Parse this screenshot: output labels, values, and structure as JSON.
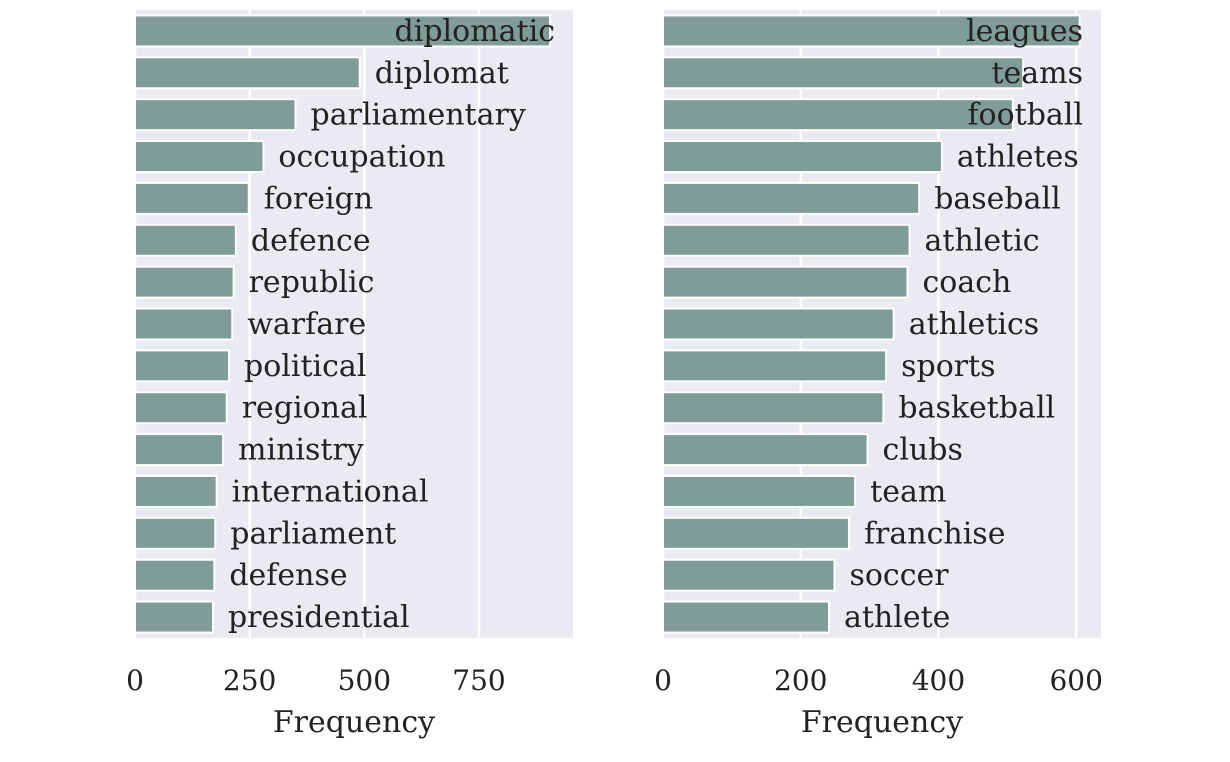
{
  "chart_data": [
    {
      "type": "bar",
      "orientation": "horizontal",
      "categories": [
        "diplomatic",
        "diplomat",
        "parliamentary",
        "occupation",
        "foreign",
        "defence",
        "republic",
        "warfare",
        "political",
        "regional",
        "ministry",
        "international",
        "parliament",
        "defense",
        "presidential"
      ],
      "values": [
        905,
        490,
        350,
        280,
        248,
        220,
        215,
        212,
        205,
        200,
        192,
        178,
        175,
        173,
        170
      ],
      "xlabel": "Frequency",
      "ylabel": "",
      "xlim": [
        0,
        955
      ],
      "xticks": [
        0,
        250,
        500,
        750
      ],
      "xtick_labels": [
        "0",
        "250",
        "500",
        "750"
      ],
      "grid": true,
      "bar_color": "#7f9c96",
      "background_color": "#eaeaf2"
    },
    {
      "type": "bar",
      "orientation": "horizontal",
      "categories": [
        "leagues",
        "teams",
        "football",
        "athletes",
        "baseball",
        "athletic",
        "coach",
        "athletics",
        "sports",
        "basketball",
        "clubs",
        "team",
        "franchise",
        "soccer",
        "athlete"
      ],
      "values": [
        605,
        523,
        508,
        405,
        372,
        358,
        355,
        335,
        324,
        320,
        297,
        279,
        270,
        249,
        241
      ],
      "xlabel": "Frequency",
      "ylabel": "",
      "xlim": [
        0,
        636
      ],
      "xticks": [
        0,
        200,
        400,
        600
      ],
      "xtick_labels": [
        "0",
        "200",
        "400",
        "600"
      ],
      "grid": true,
      "bar_color": "#7f9c96",
      "background_color": "#eaeaf2"
    }
  ]
}
